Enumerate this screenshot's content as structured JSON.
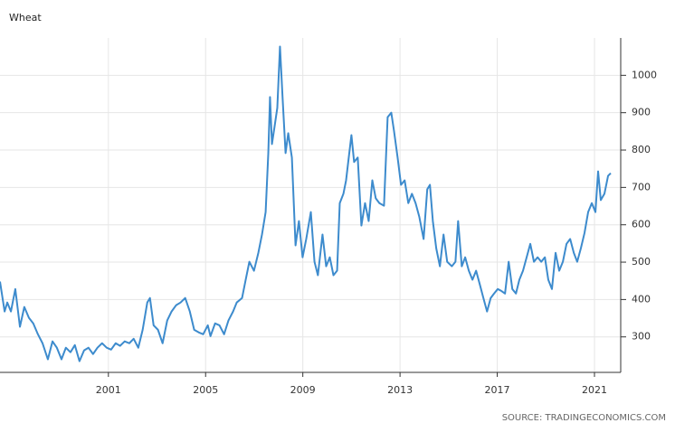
{
  "chart_data": {
    "type": "line",
    "title": "Wheat",
    "source": "SOURCE: TRADINGECONOMICS.COM",
    "x": [
      1996.54,
      1996.73,
      1996.84,
      1996.99,
      1997.17,
      1997.36,
      1997.54,
      1997.73,
      1997.91,
      1998.1,
      1998.29,
      1998.51,
      1998.7,
      1998.88,
      1999.07,
      1999.25,
      1999.44,
      1999.62,
      1999.81,
      2000.0,
      2000.18,
      2000.37,
      2000.55,
      2000.74,
      2000.93,
      2001.11,
      2001.3,
      2001.48,
      2001.67,
      2001.86,
      2002.04,
      2002.23,
      2002.41,
      2002.6,
      2002.71,
      2002.86,
      2003.04,
      2003.23,
      2003.42,
      2003.6,
      2003.79,
      2003.97,
      2004.16,
      2004.35,
      2004.53,
      2004.72,
      2004.9,
      2005.09,
      2005.2,
      2005.39,
      2005.57,
      2005.76,
      2005.94,
      2006.13,
      2006.28,
      2006.5,
      2006.65,
      2006.8,
      2006.99,
      2007.17,
      2007.32,
      2007.47,
      2007.58,
      2007.65,
      2007.73,
      2007.84,
      2007.95,
      2008.06,
      2008.17,
      2008.29,
      2008.4,
      2008.55,
      2008.7,
      2008.84,
      2008.99,
      2009.14,
      2009.33,
      2009.48,
      2009.62,
      2009.81,
      2009.96,
      2010.11,
      2010.26,
      2010.41,
      2010.52,
      2010.67,
      2010.78,
      2010.89,
      2011.0,
      2011.11,
      2011.26,
      2011.41,
      2011.56,
      2011.71,
      2011.86,
      2012.0,
      2012.15,
      2012.34,
      2012.49,
      2012.64,
      2012.75,
      2012.9,
      2013.04,
      2013.19,
      2013.34,
      2013.49,
      2013.64,
      2013.79,
      2013.97,
      2014.12,
      2014.23,
      2014.35,
      2014.49,
      2014.64,
      2014.79,
      2014.94,
      2015.13,
      2015.28,
      2015.39,
      2015.54,
      2015.68,
      2015.83,
      2015.98,
      2016.13,
      2016.28,
      2016.43,
      2016.58,
      2016.73,
      2016.87,
      2017.02,
      2017.17,
      2017.32,
      2017.47,
      2017.62,
      2017.77,
      2017.91,
      2018.06,
      2018.21,
      2018.36,
      2018.51,
      2018.66,
      2018.81,
      2018.96,
      2019.1,
      2019.25,
      2019.4,
      2019.55,
      2019.7,
      2019.85,
      2020.0,
      2020.15,
      2020.29,
      2020.44,
      2020.59,
      2020.74,
      2020.89,
      2021.04,
      2021.15,
      2021.26,
      2021.41,
      2021.56,
      2021.67
    ],
    "series": [
      {
        "name": "Wheat",
        "color": "#3d8bcd",
        "values": [
          448,
          368,
          392,
          368,
          428,
          327,
          380,
          351,
          336,
          307,
          283,
          240,
          288,
          271,
          240,
          271,
          259,
          278,
          235,
          264,
          271,
          254,
          271,
          283,
          271,
          266,
          283,
          276,
          288,
          283,
          295,
          271,
          319,
          392,
          404,
          331,
          319,
          283,
          344,
          368,
          385,
          392,
          404,
          368,
          319,
          312,
          307,
          331,
          302,
          336,
          331,
          307,
          344,
          368,
          392,
          404,
          453,
          501,
          477,
          525,
          574,
          634,
          792,
          942,
          816,
          864,
          913,
          1077,
          937,
          792,
          845,
          780,
          545,
          610,
          513,
          562,
          634,
          501,
          465,
          574,
          489,
          513,
          465,
          477,
          658,
          683,
          719,
          780,
          840,
          768,
          780,
          598,
          658,
          610,
          719,
          671,
          658,
          651,
          888,
          900,
          852,
          780,
          707,
          719,
          658,
          683,
          658,
          622,
          562,
          695,
          707,
          610,
          537,
          489,
          574,
          501,
          489,
          501,
          610,
          489,
          513,
          477,
          453,
          477,
          441,
          404,
          368,
          404,
          416,
          428,
          423,
          416,
          501,
          428,
          416,
          453,
          477,
          513,
          549,
          501,
          513,
          501,
          513,
          453,
          428,
          525,
          477,
          501,
          549,
          562,
          525,
          501,
          537,
          578,
          634,
          658,
          634,
          743,
          666,
          683,
          731,
          738
        ]
      }
    ],
    "xlim": [
      1996.54,
      2022.08
    ],
    "xticks": [
      2001,
      2005,
      2009,
      2013,
      2017,
      2021
    ],
    "ylim": [
      205,
      1100
    ],
    "yticks": [
      300,
      400,
      500,
      600,
      700,
      800,
      900,
      1000
    ],
    "grid": true
  }
}
